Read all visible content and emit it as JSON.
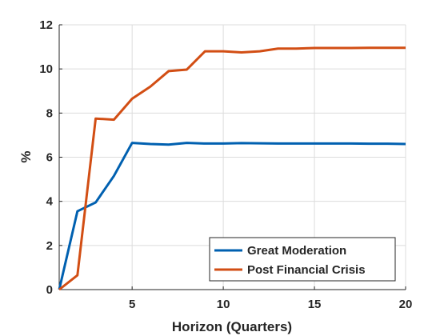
{
  "chart_data": {
    "type": "line",
    "xlabel": "Horizon (Quarters)",
    "ylabel": "%",
    "xlim": [
      1,
      20
    ],
    "ylim": [
      0,
      12
    ],
    "x_ticks": [
      5,
      10,
      15,
      20
    ],
    "y_ticks": [
      0,
      2,
      4,
      6,
      8,
      10,
      12
    ],
    "grid": true,
    "legend_position": "bottom-right",
    "x": [
      1,
      2,
      3,
      4,
      5,
      6,
      7,
      8,
      9,
      10,
      11,
      12,
      13,
      14,
      15,
      16,
      17,
      18,
      19,
      20
    ],
    "series": [
      {
        "name": "Great Moderation",
        "color": "#0060B0",
        "values": [
          0.0,
          3.55,
          3.95,
          5.15,
          6.65,
          6.6,
          6.57,
          6.65,
          6.62,
          6.62,
          6.64,
          6.63,
          6.62,
          6.62,
          6.62,
          6.62,
          6.62,
          6.61,
          6.61,
          6.6
        ]
      },
      {
        "name": "Post Financial Crisis",
        "color": "#D24E14",
        "values": [
          0.0,
          0.65,
          7.75,
          7.7,
          8.65,
          9.2,
          9.9,
          9.97,
          10.8,
          10.8,
          10.75,
          10.8,
          10.92,
          10.92,
          10.95,
          10.95,
          10.95,
          10.96,
          10.96,
          10.96
        ]
      }
    ]
  }
}
